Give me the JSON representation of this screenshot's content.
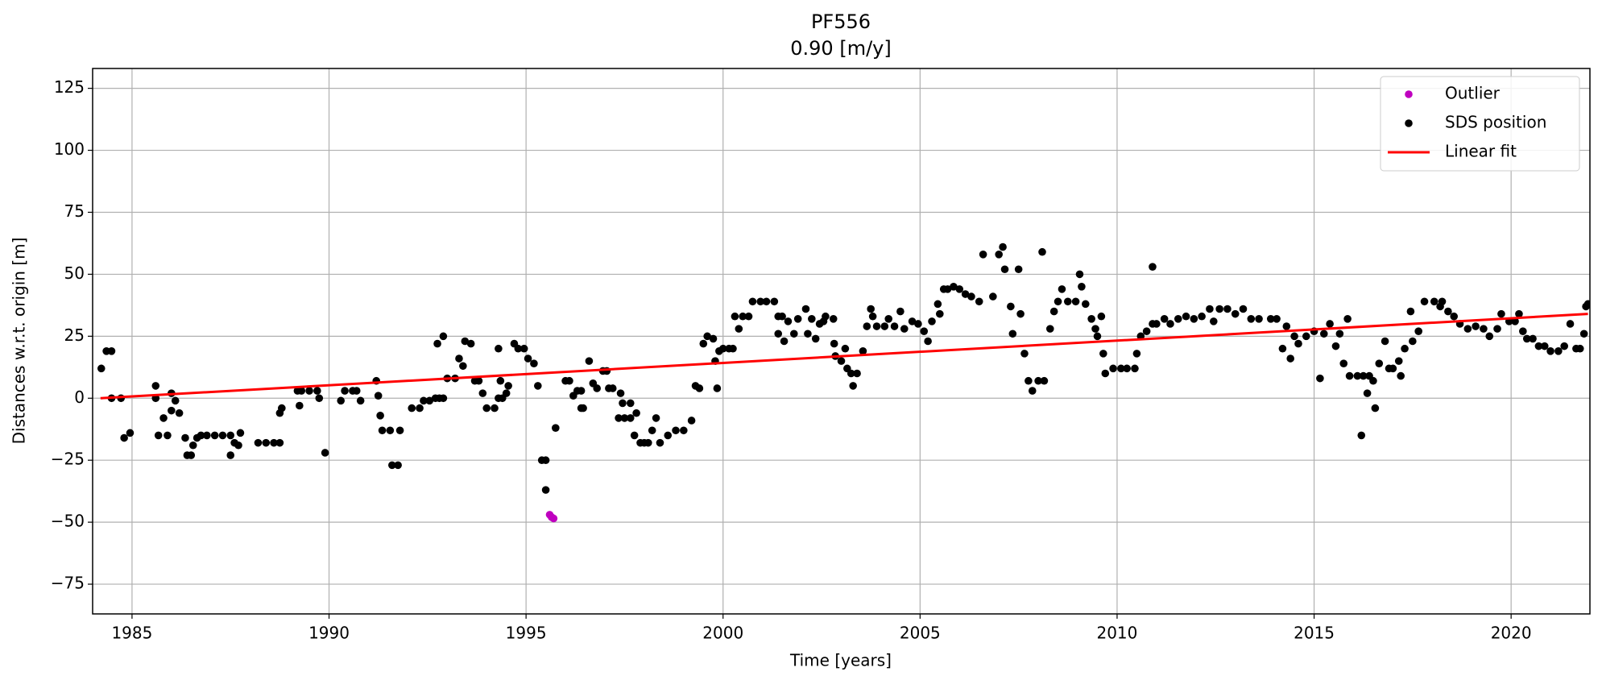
{
  "chart_data": {
    "type": "scatter",
    "title": "PF556",
    "subtitle": "0.90 [m/y]",
    "x_label": "Time [years]",
    "y_label": "Distances w.r.t. origin [m]",
    "xlim": [
      1984,
      2022
    ],
    "ylim": [
      -87,
      133
    ],
    "xticks": [
      1985,
      1990,
      1995,
      2000,
      2005,
      2010,
      2015,
      2020
    ],
    "yticks": [
      {
        "value": -75,
        "label": "−75"
      },
      {
        "value": -50,
        "label": "−50"
      },
      {
        "value": -25,
        "label": "−25"
      },
      0,
      25,
      50,
      75,
      100,
      125
    ],
    "grid": true,
    "legend": "upper right",
    "series": [
      {
        "name": "Outlier",
        "color": "#bf00bf",
        "style": "marker",
        "x": [
          1995.6,
          1995.65,
          1995.7
        ],
        "values": [
          -47,
          -48,
          -48.5
        ]
      },
      {
        "name": "SDS position",
        "color": "#000000",
        "style": "marker",
        "x": [
          1984.22,
          1984.35,
          1984.48,
          1984.48,
          1984.72,
          1984.8,
          1984.95,
          1985.6,
          1985.6,
          1985.67,
          1985.8,
          1985.9,
          1986.0,
          1986.0,
          1986.1,
          1986.2,
          1986.35,
          1986.4,
          1986.5,
          1986.55,
          1986.65,
          1986.75,
          1986.9,
          1987.1,
          1987.3,
          1987.5,
          1987.5,
          1987.6,
          1987.7,
          1987.75,
          1988.2,
          1988.4,
          1988.6,
          1988.75,
          1988.75,
          1988.8,
          1989.2,
          1989.25,
          1989.3,
          1989.5,
          1989.7,
          1989.75,
          1989.9,
          1990.3,
          1990.4,
          1990.6,
          1990.7,
          1990.8,
          1991.2,
          1991.25,
          1991.3,
          1991.35,
          1991.55,
          1991.6,
          1991.75,
          1991.8,
          1992.1,
          1992.3,
          1992.4,
          1992.55,
          1992.7,
          1992.8,
          1992.9,
          1992.75,
          1992.9,
          1993.0,
          1993.2,
          1993.3,
          1993.4,
          1993.45,
          1993.6,
          1993.7,
          1993.8,
          1993.9,
          1994.0,
          1994.2,
          1994.3,
          1994.35,
          1994.3,
          1994.4,
          1994.5,
          1994.55,
          1994.7,
          1994.8,
          1994.95,
          1995.05,
          1995.2,
          1995.3,
          1995.4,
          1995.5,
          1995.5,
          1995.75,
          1996.0,
          1996.1,
          1996.2,
          1996.3,
          1996.4,
          1996.4,
          1996.45,
          1996.6,
          1996.7,
          1996.8,
          1996.95,
          1997.05,
          1997.1,
          1997.2,
          1997.35,
          1997.4,
          1997.45,
          1997.5,
          1997.65,
          1997.65,
          1997.75,
          1997.8,
          1997.9,
          1998.0,
          1998.1,
          1998.2,
          1998.3,
          1998.4,
          1998.6,
          1998.8,
          1999.0,
          1999.2,
          1999.3,
          1999.4,
          1999.5,
          1999.6,
          1999.75,
          1999.8,
          1999.85,
          1999.9,
          2000.0,
          2000.15,
          2000.25,
          2000.3,
          2000.4,
          2000.5,
          2000.65,
          2000.75,
          2000.95,
          2001.1,
          2001.3,
          2001.4,
          2001.4,
          2001.5,
          2001.55,
          2001.65,
          2001.8,
          2001.9,
          2002.1,
          2002.15,
          2002.25,
          2002.35,
          2002.45,
          2002.55,
          2002.6,
          2002.8,
          2002.82,
          2002.85,
          2003.0,
          2003.1,
          2003.15,
          2003.25,
          2003.3,
          2003.4,
          2003.55,
          2003.65,
          2003.75,
          2003.8,
          2003.9,
          2004.1,
          2004.2,
          2004.35,
          2004.5,
          2004.6,
          2004.8,
          2004.95,
          2005.1,
          2005.2,
          2005.3,
          2005.45,
          2005.5,
          2005.6,
          2005.7,
          2005.85,
          2006.0,
          2006.15,
          2006.3,
          2006.5,
          2006.6,
          2006.85,
          2007.0,
          2007.1,
          2007.15,
          2007.3,
          2007.35,
          2007.5,
          2007.55,
          2007.65,
          2007.75,
          2007.85,
          2008.0,
          2008.15,
          2008.1,
          2008.3,
          2008.4,
          2008.5,
          2008.6,
          2008.75,
          2008.95,
          2009.05,
          2009.1,
          2009.2,
          2009.35,
          2009.45,
          2009.5,
          2009.6,
          2009.65,
          2009.7,
          2009.9,
          2010.1,
          2010.25,
          2010.45,
          2010.5,
          2010.6,
          2010.75,
          2010.9,
          2010.9,
          2011.0,
          2011.2,
          2011.35,
          2011.55,
          2011.75,
          2011.95,
          2012.15,
          2012.35,
          2012.45,
          2012.6,
          2012.8,
          2013.0,
          2013.2,
          2013.4,
          2013.6,
          2013.9,
          2014.05,
          2014.2,
          2014.3,
          2014.4,
          2014.5,
          2014.6,
          2014.8,
          2015.0,
          2015.15,
          2015.25,
          2015.4,
          2015.55,
          2015.65,
          2015.75,
          2015.85,
          2015.9,
          2016.1,
          2016.25,
          2016.35,
          2016.2,
          2016.4,
          2016.5,
          2016.55,
          2016.65,
          2016.8,
          2016.9,
          2017.0,
          2017.15,
          2017.2,
          2017.3,
          2017.45,
          2017.5,
          2017.65,
          2017.8,
          2018.05,
          2018.2,
          2018.25,
          2018.4,
          2018.55,
          2018.7,
          2018.9,
          2019.1,
          2019.3,
          2019.45,
          2019.65,
          2019.75,
          2019.95,
          2020.1,
          2020.2,
          2020.3,
          2020.4,
          2020.55,
          2020.7,
          2020.85,
          2021.0,
          2021.2,
          2021.35,
          2021.5,
          2021.65,
          2021.75,
          2021.85,
          2021.9,
          2021.95
        ],
        "values": [
          12,
          19,
          19,
          0,
          0,
          -16,
          -14,
          5,
          0,
          -15,
          -8,
          -15,
          2,
          -5,
          -1,
          -6,
          -16,
          -23,
          -23,
          -19,
          -16,
          -15,
          -15,
          -15,
          -15,
          -23,
          -15,
          -18,
          -19,
          -14,
          -18,
          -18,
          -18,
          -18,
          -6,
          -4,
          3,
          -3,
          3,
          3,
          3,
          0,
          -22,
          -1,
          3,
          3,
          3,
          -1,
          7,
          1,
          -7,
          -13,
          -13,
          -27,
          -27,
          -13,
          -4,
          -4,
          -1,
          -1,
          0,
          0,
          0,
          22,
          25,
          8,
          8,
          16,
          13,
          23,
          22,
          7,
          7,
          2,
          -4,
          -4,
          0,
          7,
          20,
          0,
          2,
          5,
          22,
          20,
          20,
          16,
          14,
          5,
          -25,
          -25,
          -37,
          -12,
          7,
          7,
          1,
          3,
          3,
          -4,
          -4,
          15,
          6,
          4,
          11,
          11,
          4,
          4,
          -8,
          2,
          -2,
          -8,
          -8,
          -2,
          -15,
          -6,
          -18,
          -18,
          -18,
          -13,
          -8,
          -18,
          -15,
          -13,
          -13,
          -9,
          5,
          4,
          22,
          25,
          24,
          15,
          4,
          19,
          20,
          20,
          20,
          33,
          28,
          33,
          33,
          39,
          39,
          39,
          39,
          33,
          26,
          33,
          23,
          31,
          26,
          32,
          36,
          26,
          32,
          24,
          30,
          31,
          33,
          32,
          22,
          17,
          15,
          20,
          12,
          10,
          5,
          10,
          19,
          29,
          36,
          33,
          29,
          29,
          32,
          29,
          35,
          28,
          31,
          30,
          27,
          23,
          31,
          38,
          34,
          44,
          44,
          45,
          44,
          42,
          41,
          39,
          58,
          41,
          58,
          61,
          52,
          37,
          26,
          52,
          34,
          18,
          7,
          3,
          7,
          7,
          59,
          28,
          35,
          39,
          44,
          39,
          39,
          50,
          45,
          38,
          32,
          28,
          25,
          33,
          18,
          10,
          12,
          12,
          12,
          12,
          18,
          25,
          27,
          30,
          53,
          30,
          32,
          30,
          32,
          33,
          32,
          33,
          36,
          31,
          36,
          36,
          34,
          36,
          32,
          32,
          32,
          32,
          20,
          29,
          16,
          25,
          22,
          25,
          27,
          8,
          26,
          30,
          21,
          26,
          14,
          32,
          9,
          9,
          9,
          2,
          -15,
          9,
          7,
          -4,
          14,
          23,
          12,
          12,
          15,
          9,
          20,
          35,
          23,
          27,
          39,
          39,
          37,
          39,
          35,
          33,
          30,
          28,
          29,
          28,
          25,
          28,
          34,
          31,
          31,
          34,
          27,
          24,
          24,
          21,
          21,
          19,
          19,
          21,
          30,
          20,
          20,
          26,
          37,
          38
        ]
      },
      {
        "name": "Linear fit",
        "color": "#ff0000",
        "style": "line",
        "x": [
          1984.2,
          2021.95
        ],
        "values": [
          0,
          34
        ]
      }
    ]
  }
}
